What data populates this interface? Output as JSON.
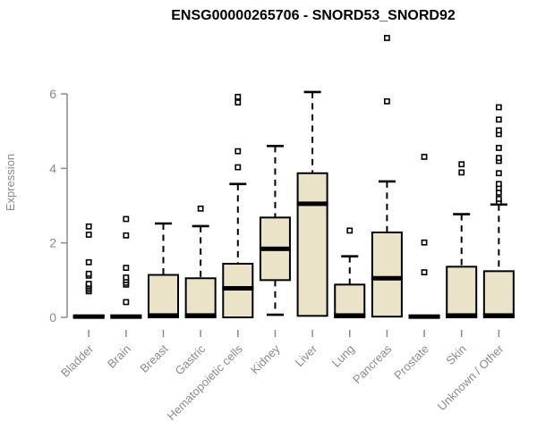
{
  "chart_data": {
    "type": "boxplot",
    "title": "ENSG00000265706 - SNORD53_SNORD92",
    "ylabel": "Expression",
    "xlabel": "",
    "ylim": [
      0,
      6
    ],
    "yticks": [
      0,
      2,
      4,
      6
    ],
    "grid": false,
    "legend": false,
    "categories": [
      "Bladder",
      "Brain",
      "Breast",
      "Gastric",
      "Hematopoietic cells",
      "Kidney",
      "Liver",
      "Lung",
      "Pancreas",
      "Prostate",
      "Skin",
      "Unknown / Other"
    ],
    "series": [
      {
        "category": "Bladder",
        "whisker_low": 0,
        "q1": 0,
        "median": 0.02,
        "q3": 0.05,
        "whisker_high": 0.05,
        "outliers": [
          0.7,
          0.75,
          0.8,
          0.85,
          0.9,
          1.12,
          1.17,
          1.48,
          2.22,
          2.44
        ]
      },
      {
        "category": "Brain",
        "whisker_low": 0,
        "q1": 0,
        "median": 0.02,
        "q3": 0.05,
        "whisker_high": 0.05,
        "outliers": [
          0.41,
          0.88,
          0.93,
          1.0,
          1.07,
          1.33,
          2.2,
          2.64
        ]
      },
      {
        "category": "Breast",
        "whisker_low": 0,
        "q1": 0,
        "median": 0.05,
        "q3": 1.14,
        "whisker_high": 2.52,
        "outliers": []
      },
      {
        "category": "Gastric",
        "whisker_low": 0,
        "q1": 0,
        "median": 0.05,
        "q3": 1.05,
        "whisker_high": 2.45,
        "outliers": [
          2.92
        ]
      },
      {
        "category": "Hematopoietic cells",
        "whisker_low": 0,
        "q1": 0,
        "median": 0.78,
        "q3": 1.44,
        "whisker_high": 3.58,
        "outliers": [
          4.03,
          4.46,
          5.77,
          5.92
        ]
      },
      {
        "category": "Kidney",
        "whisker_low": 0.07,
        "q1": 1.0,
        "median": 1.84,
        "q3": 2.68,
        "whisker_high": 4.6,
        "outliers": []
      },
      {
        "category": "Liver",
        "whisker_low": 0.04,
        "q1": 0.04,
        "median": 3.05,
        "q3": 3.87,
        "whisker_high": 6.05,
        "outliers": []
      },
      {
        "category": "Lung",
        "whisker_low": 0,
        "q1": 0,
        "median": 0.05,
        "q3": 0.88,
        "whisker_high": 1.64,
        "outliers": [
          2.33
        ]
      },
      {
        "category": "Pancreas",
        "whisker_low": 0,
        "q1": 0.02,
        "median": 1.05,
        "q3": 2.28,
        "whisker_high": 3.65,
        "outliers": [
          5.8,
          7.5
        ]
      },
      {
        "category": "Prostate",
        "whisker_low": 0,
        "q1": 0,
        "median": 0.02,
        "q3": 0.05,
        "whisker_high": 0.05,
        "outliers": [
          1.21,
          2.01,
          4.31
        ]
      },
      {
        "category": "Skin",
        "whisker_low": 0,
        "q1": 0,
        "median": 0.05,
        "q3": 1.36,
        "whisker_high": 2.77,
        "outliers": [
          3.89,
          4.11
        ]
      },
      {
        "category": "Unknown / Other",
        "whisker_low": 0,
        "q1": 0,
        "median": 0.05,
        "q3": 1.24,
        "whisker_high": 3.03,
        "outliers": [
          3.1,
          3.18,
          3.35,
          3.47,
          3.58,
          3.87,
          4.2,
          4.28,
          4.55,
          4.92,
          5.02,
          5.31,
          5.64
        ]
      }
    ],
    "colors": {
      "box_fill": "#EBE3C8",
      "box_stroke": "#000000",
      "median": "#000000",
      "whisker": "#000000",
      "outlier_stroke": "#000000",
      "outlier_fill": "#FFFFFF",
      "axis": "#8A8A8A",
      "tick_text": "#8A8A8A",
      "title": "#000000"
    }
  }
}
